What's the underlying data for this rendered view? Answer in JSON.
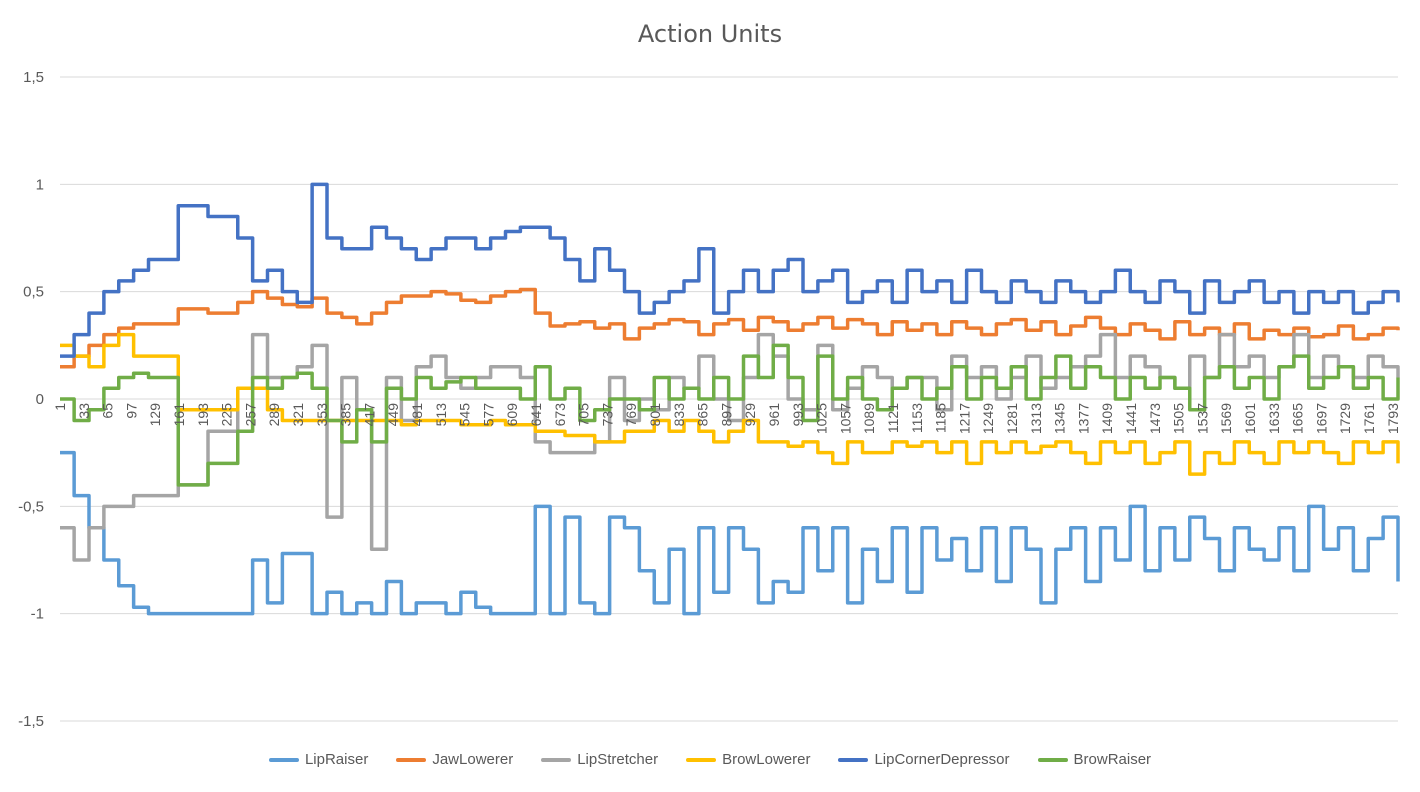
{
  "chart_data": {
    "type": "line",
    "title": "Action Units",
    "ylim": [
      -1.5,
      1.5
    ],
    "y_ticks": [
      "1,5",
      "1",
      "0,5",
      "0",
      "-0,5",
      "-1",
      "-1,5"
    ],
    "y_tick_values": [
      1.5,
      1,
      0.5,
      0,
      -0.5,
      -1,
      -1.5
    ],
    "x_range": [
      1,
      1800
    ],
    "x_tick_labels": [
      "1",
      "33",
      "65",
      "97",
      "129",
      "161",
      "193",
      "225",
      "257",
      "289",
      "321",
      "353",
      "385",
      "417",
      "449",
      "481",
      "513",
      "545",
      "577",
      "609",
      "641",
      "673",
      "705",
      "737",
      "769",
      "801",
      "833",
      "865",
      "897",
      "929",
      "961",
      "993",
      "1025",
      "1057",
      "1089",
      "1121",
      "1153",
      "1185",
      "1217",
      "1249",
      "1281",
      "1313",
      "1345",
      "1377",
      "1409",
      "1441",
      "1473",
      "1505",
      "1537",
      "1569",
      "1601",
      "1633",
      "1665",
      "1697",
      "1729",
      "1761",
      "1793"
    ],
    "grid": "horizontal",
    "legend_position": "bottom",
    "series": [
      {
        "name": "LipRaiser",
        "color": "#5B9BD5",
        "x": [
          1,
          20,
          40,
          60,
          80,
          100,
          120,
          160,
          200,
          240,
          260,
          280,
          300,
          320,
          340,
          360,
          380,
          400,
          420,
          440,
          460,
          480,
          500,
          520,
          540,
          560,
          580,
          600,
          620,
          640,
          660,
          680,
          700,
          720,
          740,
          760,
          780,
          800,
          820,
          840,
          860,
          880,
          900,
          920,
          940,
          960,
          980,
          1000,
          1020,
          1040,
          1060,
          1080,
          1100,
          1120,
          1140,
          1160,
          1180,
          1200,
          1220,
          1240,
          1260,
          1280,
          1300,
          1320,
          1340,
          1360,
          1380,
          1400,
          1420,
          1440,
          1460,
          1480,
          1500,
          1520,
          1540,
          1560,
          1580,
          1600,
          1620,
          1640,
          1660,
          1680,
          1700,
          1720,
          1740,
          1760,
          1780,
          1800
        ],
        "values": [
          -0.25,
          -0.45,
          -0.6,
          -0.75,
          -0.87,
          -0.97,
          -1,
          -1,
          -1,
          -1,
          -0.75,
          -0.95,
          -0.72,
          -0.72,
          -1,
          -0.9,
          -1,
          -0.95,
          -1,
          -0.85,
          -1,
          -0.95,
          -0.95,
          -1,
          -0.9,
          -0.97,
          -1,
          -1,
          -1,
          -0.5,
          -1,
          -0.55,
          -0.95,
          -1,
          -0.55,
          -0.6,
          -0.8,
          -0.95,
          -0.7,
          -1,
          -0.6,
          -0.9,
          -0.6,
          -0.7,
          -0.95,
          -0.85,
          -0.9,
          -0.6,
          -0.8,
          -0.6,
          -0.95,
          -0.7,
          -0.85,
          -0.6,
          -0.9,
          -0.6,
          -0.75,
          -0.65,
          -0.8,
          -0.6,
          -0.85,
          -0.6,
          -0.7,
          -0.95,
          -0.7,
          -0.6,
          -0.85,
          -0.6,
          -0.75,
          -0.5,
          -0.8,
          -0.6,
          -0.75,
          -0.55,
          -0.65,
          -0.8,
          -0.6,
          -0.7,
          -0.75,
          -0.6,
          -0.8,
          -0.5,
          -0.7,
          -0.6,
          -0.8,
          -0.65,
          -0.55,
          -0.85
        ]
      },
      {
        "name": "JawLowerer",
        "color": "#ED7D31",
        "x": [
          1,
          20,
          40,
          60,
          80,
          100,
          120,
          160,
          200,
          240,
          260,
          280,
          300,
          320,
          340,
          360,
          380,
          400,
          420,
          440,
          460,
          480,
          500,
          520,
          540,
          560,
          580,
          600,
          620,
          640,
          660,
          680,
          700,
          720,
          740,
          760,
          780,
          800,
          820,
          840,
          860,
          880,
          900,
          920,
          940,
          960,
          980,
          1000,
          1020,
          1040,
          1060,
          1080,
          1100,
          1120,
          1140,
          1160,
          1180,
          1200,
          1220,
          1240,
          1260,
          1280,
          1300,
          1320,
          1340,
          1360,
          1380,
          1400,
          1420,
          1440,
          1460,
          1480,
          1500,
          1520,
          1540,
          1560,
          1580,
          1600,
          1620,
          1640,
          1660,
          1680,
          1700,
          1720,
          1740,
          1760,
          1780,
          1800
        ],
        "values": [
          0.15,
          0.2,
          0.25,
          0.3,
          0.33,
          0.35,
          0.35,
          0.42,
          0.4,
          0.45,
          0.5,
          0.47,
          0.44,
          0.43,
          0.47,
          0.4,
          0.38,
          0.35,
          0.4,
          0.45,
          0.48,
          0.48,
          0.5,
          0.49,
          0.46,
          0.45,
          0.48,
          0.5,
          0.51,
          0.4,
          0.34,
          0.35,
          0.36,
          0.33,
          0.35,
          0.28,
          0.33,
          0.35,
          0.37,
          0.36,
          0.3,
          0.35,
          0.37,
          0.32,
          0.38,
          0.36,
          0.32,
          0.35,
          0.38,
          0.33,
          0.37,
          0.35,
          0.3,
          0.36,
          0.32,
          0.35,
          0.3,
          0.36,
          0.33,
          0.3,
          0.35,
          0.37,
          0.32,
          0.36,
          0.3,
          0.34,
          0.38,
          0.33,
          0.3,
          0.35,
          0.32,
          0.28,
          0.36,
          0.3,
          0.33,
          0.3,
          0.35,
          0.28,
          0.32,
          0.3,
          0.33,
          0.29,
          0.3,
          0.34,
          0.28,
          0.3,
          0.33,
          0.32
        ]
      },
      {
        "name": "LipStretcher",
        "color": "#A5A5A5",
        "x": [
          1,
          20,
          40,
          60,
          80,
          100,
          120,
          160,
          200,
          240,
          260,
          280,
          300,
          320,
          340,
          360,
          380,
          400,
          420,
          440,
          460,
          480,
          500,
          520,
          540,
          560,
          580,
          600,
          620,
          640,
          660,
          680,
          700,
          720,
          740,
          760,
          780,
          800,
          820,
          840,
          860,
          880,
          900,
          920,
          940,
          960,
          980,
          1000,
          1020,
          1040,
          1060,
          1080,
          1100,
          1120,
          1140,
          1160,
          1180,
          1200,
          1220,
          1240,
          1260,
          1280,
          1300,
          1320,
          1340,
          1360,
          1380,
          1400,
          1420,
          1440,
          1460,
          1480,
          1500,
          1520,
          1540,
          1560,
          1580,
          1600,
          1620,
          1640,
          1660,
          1680,
          1700,
          1720,
          1740,
          1760,
          1780,
          1800
        ],
        "values": [
          -0.6,
          -0.75,
          -0.6,
          -0.5,
          -0.5,
          -0.45,
          -0.45,
          -0.4,
          -0.15,
          0.05,
          0.3,
          0.1,
          0.1,
          0.15,
          0.25,
          -0.55,
          0.1,
          -0.05,
          -0.7,
          0.1,
          -0.1,
          0.15,
          0.2,
          0.1,
          0.05,
          0.1,
          0.15,
          0.15,
          0.1,
          -0.2,
          -0.25,
          -0.25,
          -0.25,
          -0.2,
          0.1,
          -0.1,
          0,
          -0.05,
          0.1,
          0.05,
          0.2,
          0,
          -0.1,
          0.1,
          0.3,
          0.2,
          0,
          -0.05,
          0.25,
          -0.05,
          0.05,
          0.15,
          0.1,
          0.05,
          0.1,
          0.1,
          -0.05,
          0.2,
          0.1,
          0.15,
          0,
          0.1,
          0.2,
          0.05,
          0.1,
          0.15,
          0.2,
          0.3,
          0.1,
          0.2,
          0.15,
          0.1,
          0.05,
          0.2,
          0.1,
          0.3,
          0.15,
          0.2,
          0.1,
          0.15,
          0.3,
          0.1,
          0.2,
          0.15,
          0.1,
          0.2,
          0.15,
          0.1
        ]
      },
      {
        "name": "BrowLowerer",
        "color": "#FFC000",
        "x": [
          1,
          20,
          40,
          60,
          80,
          100,
          120,
          160,
          200,
          240,
          260,
          280,
          300,
          320,
          340,
          360,
          380,
          400,
          420,
          440,
          460,
          480,
          500,
          520,
          540,
          560,
          580,
          600,
          620,
          640,
          660,
          680,
          700,
          720,
          740,
          760,
          780,
          800,
          820,
          840,
          860,
          880,
          900,
          920,
          940,
          960,
          980,
          1000,
          1020,
          1040,
          1060,
          1080,
          1100,
          1120,
          1140,
          1160,
          1180,
          1200,
          1220,
          1240,
          1260,
          1280,
          1300,
          1320,
          1340,
          1360,
          1380,
          1400,
          1420,
          1440,
          1460,
          1480,
          1500,
          1520,
          1540,
          1560,
          1580,
          1600,
          1620,
          1640,
          1660,
          1680,
          1700,
          1720,
          1740,
          1760,
          1780,
          1800
        ],
        "values": [
          0.25,
          0.2,
          0.15,
          0.25,
          0.3,
          0.2,
          0.2,
          -0.05,
          -0.05,
          0.05,
          0.05,
          -0.05,
          -0.1,
          -0.1,
          -0.1,
          -0.1,
          -0.1,
          -0.1,
          -0.1,
          -0.1,
          -0.12,
          -0.1,
          -0.1,
          -0.1,
          -0.12,
          -0.12,
          -0.1,
          -0.12,
          -0.12,
          -0.15,
          -0.15,
          -0.17,
          -0.17,
          -0.2,
          -0.2,
          -0.15,
          -0.15,
          -0.1,
          -0.15,
          -0.1,
          -0.15,
          -0.2,
          -0.15,
          -0.1,
          -0.2,
          -0.2,
          -0.22,
          -0.2,
          -0.25,
          -0.3,
          -0.2,
          -0.25,
          -0.25,
          -0.2,
          -0.22,
          -0.2,
          -0.25,
          -0.2,
          -0.3,
          -0.2,
          -0.25,
          -0.2,
          -0.25,
          -0.22,
          -0.2,
          -0.25,
          -0.3,
          -0.2,
          -0.25,
          -0.2,
          -0.3,
          -0.25,
          -0.2,
          -0.35,
          -0.25,
          -0.3,
          -0.2,
          -0.25,
          -0.3,
          -0.2,
          -0.25,
          -0.2,
          -0.25,
          -0.3,
          -0.2,
          -0.25,
          -0.2,
          -0.3
        ]
      },
      {
        "name": "LipCornerDepressor",
        "color": "#4472C4",
        "x": [
          1,
          20,
          40,
          60,
          80,
          100,
          120,
          160,
          200,
          240,
          260,
          280,
          300,
          320,
          340,
          360,
          380,
          400,
          420,
          440,
          460,
          480,
          500,
          520,
          540,
          560,
          580,
          600,
          620,
          640,
          660,
          680,
          700,
          720,
          740,
          760,
          780,
          800,
          820,
          840,
          860,
          880,
          900,
          920,
          940,
          960,
          980,
          1000,
          1020,
          1040,
          1060,
          1080,
          1100,
          1120,
          1140,
          1160,
          1180,
          1200,
          1220,
          1240,
          1260,
          1280,
          1300,
          1320,
          1340,
          1360,
          1380,
          1400,
          1420,
          1440,
          1460,
          1480,
          1500,
          1520,
          1540,
          1560,
          1580,
          1600,
          1620,
          1640,
          1660,
          1680,
          1700,
          1720,
          1740,
          1760,
          1780,
          1800
        ],
        "values": [
          0.2,
          0.3,
          0.4,
          0.5,
          0.55,
          0.6,
          0.65,
          0.9,
          0.85,
          0.75,
          0.55,
          0.6,
          0.5,
          0.45,
          1.0,
          0.75,
          0.7,
          0.7,
          0.8,
          0.75,
          0.7,
          0.65,
          0.7,
          0.75,
          0.75,
          0.7,
          0.75,
          0.78,
          0.8,
          0.8,
          0.75,
          0.65,
          0.55,
          0.7,
          0.6,
          0.5,
          0.4,
          0.45,
          0.5,
          0.55,
          0.7,
          0.4,
          0.5,
          0.6,
          0.5,
          0.6,
          0.65,
          0.5,
          0.55,
          0.6,
          0.45,
          0.5,
          0.55,
          0.45,
          0.6,
          0.5,
          0.55,
          0.45,
          0.6,
          0.5,
          0.45,
          0.55,
          0.5,
          0.45,
          0.55,
          0.5,
          0.45,
          0.5,
          0.6,
          0.5,
          0.45,
          0.55,
          0.5,
          0.4,
          0.55,
          0.45,
          0.5,
          0.55,
          0.45,
          0.5,
          0.4,
          0.5,
          0.45,
          0.5,
          0.4,
          0.45,
          0.5,
          0.45
        ]
      },
      {
        "name": "BrowRaiser",
        "color": "#70AD47",
        "x": [
          1,
          20,
          40,
          60,
          80,
          100,
          120,
          160,
          200,
          240,
          260,
          280,
          300,
          320,
          340,
          360,
          380,
          400,
          420,
          440,
          460,
          480,
          500,
          520,
          540,
          560,
          580,
          600,
          620,
          640,
          660,
          680,
          700,
          720,
          740,
          760,
          780,
          800,
          820,
          840,
          860,
          880,
          900,
          920,
          940,
          960,
          980,
          1000,
          1020,
          1040,
          1060,
          1080,
          1100,
          1120,
          1140,
          1160,
          1180,
          1200,
          1220,
          1240,
          1260,
          1280,
          1300,
          1320,
          1340,
          1360,
          1380,
          1400,
          1420,
          1440,
          1460,
          1480,
          1500,
          1520,
          1540,
          1560,
          1580,
          1600,
          1620,
          1640,
          1660,
          1680,
          1700,
          1720,
          1740,
          1760,
          1780,
          1800
        ],
        "values": [
          0,
          -0.1,
          -0.05,
          0.05,
          0.1,
          0.12,
          0.1,
          -0.4,
          -0.3,
          -0.15,
          0.1,
          0.05,
          0.1,
          0.12,
          0.05,
          -0.1,
          -0.2,
          -0.05,
          -0.2,
          0.05,
          0,
          0.1,
          0.05,
          0.08,
          0.1,
          0.05,
          0.05,
          0.05,
          0,
          0.15,
          0,
          0.05,
          -0.1,
          -0.05,
          0,
          0,
          -0.05,
          0.1,
          0,
          0.05,
          0,
          0.1,
          0,
          0.2,
          0.1,
          0.25,
          0.1,
          -0.1,
          0.2,
          0,
          0.1,
          0,
          -0.05,
          0.05,
          0.1,
          0,
          0.05,
          0.15,
          0,
          0.1,
          0.05,
          0.15,
          0,
          0.1,
          0.2,
          0.05,
          0.15,
          0.1,
          0,
          0.1,
          0.05,
          0.1,
          0.05,
          -0.05,
          0.1,
          0.15,
          0.05,
          0.1,
          0,
          0.15,
          0.2,
          0.05,
          0.1,
          0.15,
          0.05,
          0.1,
          0,
          0.1
        ]
      }
    ]
  }
}
